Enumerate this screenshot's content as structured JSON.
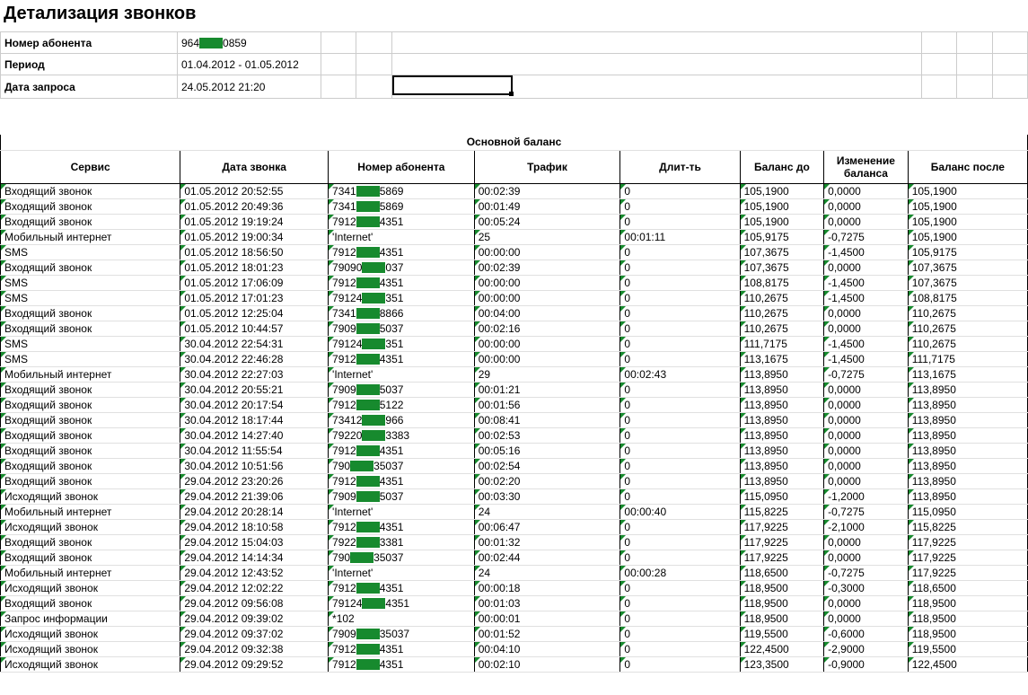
{
  "title": "Детализация звонков",
  "header": {
    "subscriber_label": "Номер абонента",
    "subscriber_pre": "964",
    "subscriber_post": "0859",
    "period_label": "Период",
    "period_value": "01.04.2012 - 01.05.2012",
    "request_label": "Дата запроса",
    "request_value": "24.05.2012 21:20"
  },
  "section_title": "Основной баланс",
  "columns": {
    "service": "Сервис",
    "date": "Дата звонка",
    "number": "Номер абонента",
    "traffic": "Трафик",
    "duration": "Длит-ть",
    "balance_before": "Баланс до",
    "balance_change": "Изменение баланса",
    "balance_after": "Баланс после"
  },
  "rows": [
    {
      "s": "Входящий звонок",
      "d": "01.05.2012 20:52:55",
      "np": "7341",
      "ns": "5869",
      "t": "00:02:39",
      "du": "0",
      "bb": "105,1900",
      "bc": "0,0000",
      "ba": "105,1900"
    },
    {
      "s": "Входящий звонок",
      "d": "01.05.2012 20:49:36",
      "np": "7341",
      "ns": "5869",
      "t": "00:01:49",
      "du": "0",
      "bb": "105,1900",
      "bc": "0,0000",
      "ba": "105,1900"
    },
    {
      "s": "Входящий звонок",
      "d": "01.05.2012 19:19:24",
      "np": "7912",
      "ns": "4351",
      "t": "00:05:24",
      "du": "0",
      "bb": "105,1900",
      "bc": "0,0000",
      "ba": "105,1900"
    },
    {
      "s": "Мобильный интернет",
      "d": "01.05.2012 19:00:34",
      "nraw": "'Internet'",
      "t": "25",
      "du": "00:01:11",
      "bb": "105,9175",
      "bc": "-0,7275",
      "ba": "105,1900"
    },
    {
      "s": "SMS",
      "d": "01.05.2012 18:56:50",
      "np": "7912",
      "ns": "4351",
      "t": "00:00:00",
      "du": "0",
      "bb": "107,3675",
      "bc": "-1,4500",
      "ba": "105,9175"
    },
    {
      "s": "Входящий звонок",
      "d": "01.05.2012 18:01:23",
      "np": "79090",
      "ns": "037",
      "t": "00:02:39",
      "du": "0",
      "bb": "107,3675",
      "bc": "0,0000",
      "ba": "107,3675"
    },
    {
      "s": "SMS",
      "d": "01.05.2012 17:06:09",
      "np": "7912",
      "ns": "4351",
      "t": "00:00:00",
      "du": "0",
      "bb": "108,8175",
      "bc": "-1,4500",
      "ba": "107,3675"
    },
    {
      "s": "SMS",
      "d": "01.05.2012 17:01:23",
      "np": "79124",
      "ns": "351",
      "t": "00:00:00",
      "du": "0",
      "bb": "110,2675",
      "bc": "-1,4500",
      "ba": "108,8175"
    },
    {
      "s": "Входящий звонок",
      "d": "01.05.2012 12:25:04",
      "np": "7341",
      "ns": "8866",
      "t": "00:04:00",
      "du": "0",
      "bb": "110,2675",
      "bc": "0,0000",
      "ba": "110,2675"
    },
    {
      "s": "Входящий звонок",
      "d": "01.05.2012 10:44:57",
      "np": "7909",
      "ns": "5037",
      "t": "00:02:16",
      "du": "0",
      "bb": "110,2675",
      "bc": "0,0000",
      "ba": "110,2675"
    },
    {
      "s": "SMS",
      "d": "30.04.2012 22:54:31",
      "np": "79124",
      "ns": "351",
      "t": "00:00:00",
      "du": "0",
      "bb": "111,7175",
      "bc": "-1,4500",
      "ba": "110,2675"
    },
    {
      "s": "SMS",
      "d": "30.04.2012 22:46:28",
      "np": "7912",
      "ns": "4351",
      "t": "00:00:00",
      "du": "0",
      "bb": "113,1675",
      "bc": "-1,4500",
      "ba": "111,7175"
    },
    {
      "s": "Мобильный интернет",
      "d": "30.04.2012 22:27:03",
      "nraw": "'Internet'",
      "t": "29",
      "du": "00:02:43",
      "bb": "113,8950",
      "bc": "-0,7275",
      "ba": "113,1675"
    },
    {
      "s": "Входящий звонок",
      "d": "30.04.2012 20:55:21",
      "np": "7909",
      "ns": "5037",
      "t": "00:01:21",
      "du": "0",
      "bb": "113,8950",
      "bc": "0,0000",
      "ba": "113,8950"
    },
    {
      "s": "Входящий звонок",
      "d": "30.04.2012 20:17:54",
      "np": "7912",
      "ns": "5122",
      "t": "00:01:56",
      "du": "0",
      "bb": "113,8950",
      "bc": "0,0000",
      "ba": "113,8950"
    },
    {
      "s": "Входящий звонок",
      "d": "30.04.2012 18:17:44",
      "np": "73412",
      "ns": "966",
      "t": "00:08:41",
      "du": "0",
      "bb": "113,8950",
      "bc": "0,0000",
      "ba": "113,8950"
    },
    {
      "s": "Входящий звонок",
      "d": "30.04.2012 14:27:40",
      "np": "79220",
      "ns": "3383",
      "t": "00:02:53",
      "du": "0",
      "bb": "113,8950",
      "bc": "0,0000",
      "ba": "113,8950"
    },
    {
      "s": "Входящий звонок",
      "d": "30.04.2012 11:55:54",
      "np": "7912",
      "ns": "4351",
      "t": "00:05:16",
      "du": "0",
      "bb": "113,8950",
      "bc": "0,0000",
      "ba": "113,8950"
    },
    {
      "s": "Входящий звонок",
      "d": "30.04.2012 10:51:56",
      "np": "790",
      "ns": "35037",
      "t": "00:02:54",
      "du": "0",
      "bb": "113,8950",
      "bc": "0,0000",
      "ba": "113,8950"
    },
    {
      "s": "Входящий звонок",
      "d": "29.04.2012 23:20:26",
      "np": "7912",
      "ns": "4351",
      "t": "00:02:20",
      "du": "0",
      "bb": "113,8950",
      "bc": "0,0000",
      "ba": "113,8950"
    },
    {
      "s": "Исходящий звонок",
      "d": "29.04.2012 21:39:06",
      "np": "7909",
      "ns": "5037",
      "t": "00:03:30",
      "du": "0",
      "bb": "115,0950",
      "bc": "-1,2000",
      "ba": "113,8950"
    },
    {
      "s": "Мобильный интернет",
      "d": "29.04.2012 20:28:14",
      "nraw": "'Internet'",
      "t": "24",
      "du": "00:00:40",
      "bb": "115,8225",
      "bc": "-0,7275",
      "ba": "115,0950"
    },
    {
      "s": "Исходящий звонок",
      "d": "29.04.2012 18:10:58",
      "np": "7912",
      "ns": "4351",
      "t": "00:06:47",
      "du": "0",
      "bb": "117,9225",
      "bc": "-2,1000",
      "ba": "115,8225"
    },
    {
      "s": "Входящий звонок",
      "d": "29.04.2012 15:04:03",
      "np": "7922",
      "ns": "3381",
      "t": "00:01:32",
      "du": "0",
      "bb": "117,9225",
      "bc": "0,0000",
      "ba": "117,9225"
    },
    {
      "s": "Входящий звонок",
      "d": "29.04.2012 14:14:34",
      "np": "790",
      "ns": "35037",
      "t": "00:02:44",
      "du": "0",
      "bb": "117,9225",
      "bc": "0,0000",
      "ba": "117,9225"
    },
    {
      "s": "Мобильный интернет",
      "d": "29.04.2012 12:43:52",
      "nraw": "'Internet'",
      "t": "24",
      "du": "00:00:28",
      "bb": "118,6500",
      "bc": "-0,7275",
      "ba": "117,9225"
    },
    {
      "s": "Исходящий звонок",
      "d": "29.04.2012 12:02:22",
      "np": "7912",
      "ns": "4351",
      "t": "00:00:18",
      "du": "0",
      "bb": "118,9500",
      "bc": "-0,3000",
      "ba": "118,6500"
    },
    {
      "s": "Входящий звонок",
      "d": "29.04.2012 09:56:08",
      "np": "79124",
      "ns": "4351",
      "t": "00:01:03",
      "du": "0",
      "bb": "118,9500",
      "bc": "0,0000",
      "ba": "118,9500"
    },
    {
      "s": "Запрос информации",
      "d": "29.04.2012 09:39:02",
      "nraw": "*102",
      "t": "00:00:01",
      "du": "0",
      "bb": "118,9500",
      "bc": "0,0000",
      "ba": "118,9500"
    },
    {
      "s": "Исходящий звонок",
      "d": "29.04.2012 09:37:02",
      "np": "7909",
      "ns": "35037",
      "t": "00:01:52",
      "du": "0",
      "bb": "119,5500",
      "bc": "-0,6000",
      "ba": "118,9500"
    },
    {
      "s": "Исходящий звонок",
      "d": "29.04.2012 09:32:38",
      "np": "7912",
      "ns": "4351",
      "t": "00:04:10",
      "du": "0",
      "bb": "122,4500",
      "bc": "-2,9000",
      "ba": "119,5500"
    },
    {
      "s": "Исходящий звонок",
      "d": "29.04.2012 09:29:52",
      "np": "7912",
      "ns": "4351",
      "t": "00:02:10",
      "du": "0",
      "bb": "123,3500",
      "bc": "-0,9000",
      "ba": "122,4500"
    }
  ]
}
